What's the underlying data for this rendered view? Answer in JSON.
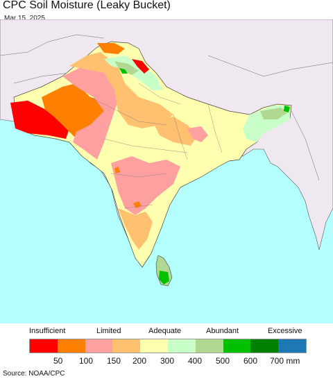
{
  "title": "CPC Soil Moisture (Leaky Bucket)",
  "date": "Mar 15, 2025",
  "source": "Source: NOAA/CPC",
  "legend": {
    "categories": [
      "Insufficient",
      "Limited",
      "Adequate",
      "Abundant",
      "Excessive"
    ],
    "colors": [
      "#ff0000",
      "#ff8000",
      "#ffa0a0",
      "#ffc070",
      "#ffffb0",
      "#c8ffc8",
      "#b0d890",
      "#00c000",
      "#008000",
      "#1e78b4"
    ],
    "ticks": [
      "50",
      "100",
      "150",
      "200",
      "300",
      "400",
      "500",
      "600",
      "700 mm"
    ]
  },
  "map": {
    "ocean_color": "#b4ffff",
    "outside_land_color": "#f0e8f0"
  }
}
